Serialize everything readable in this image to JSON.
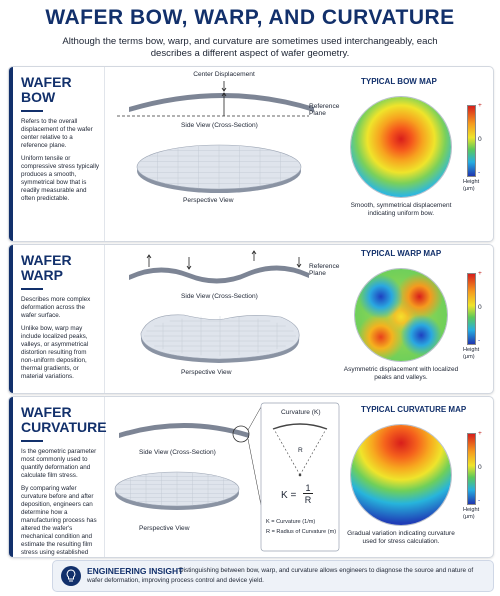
{
  "header": {
    "title": "WAFER BOW, WARP, AND CURVATURE",
    "subtitle": "Although the terms bow, warp, and curvature are sometimes used interchangeably, each describes a different aspect of wafer geometry."
  },
  "sections": [
    {
      "heading": [
        "WAFER",
        "BOW"
      ],
      "paragraphs": [
        "Refers to the overall displacement of the wafer center relative to a reference plane.",
        "Uniform tensile or compressive stress typically produces a smooth, symmetrical bow that is readily measurable and often predictable."
      ],
      "annotations": [
        "Center Displacement",
        "Reference Plane"
      ],
      "side_view_label": "Side View (Cross-Section)",
      "perspective_label": "Perspective View",
      "map_title": "TYPICAL BOW MAP",
      "map_caption": "Smooth, symmetrical displacement indicating uniform bow.",
      "colorbar": {
        "max": "+",
        "mid": "0",
        "min": "-",
        "label": "Height (μm)"
      }
    },
    {
      "heading": [
        "WAFER",
        "WARP"
      ],
      "paragraphs": [
        "Describes more complex deformation across the wafer surface.",
        "Unlike bow, warp may include localized peaks, valleys, or asymmetrical distortion resulting from non-uniform deposition, thermal gradients, or material variations."
      ],
      "annotations": [
        "Reference Plane"
      ],
      "side_view_label": "Side View (Cross-Section)",
      "perspective_label": "Perspective View",
      "map_title": "TYPICAL WARP MAP",
      "map_caption": "Asymmetric displacement with localized peaks and valleys.",
      "colorbar": {
        "max": "+",
        "mid": "0",
        "min": "-",
        "label": "Height (μm)"
      }
    },
    {
      "heading": [
        "WAFER",
        "CURVATURE"
      ],
      "paragraphs": [
        "Is the geometric parameter most commonly used to quantify deformation and calculate film stress.",
        "By comparing wafer curvature before and after deposition, engineers can determine how a manufacturing process has altered the wafer's mechanical condition and estimate the resulting film stress using established analytical models."
      ],
      "annotations": [],
      "inset": {
        "title": "Curvature (K)",
        "radius_label": "R",
        "formula": {
          "lhs": "K =",
          "numerator": "1",
          "denominator": "R"
        },
        "legend": [
          "K = Curvature (1/m)",
          "R = Radius of Curvature (m)"
        ]
      },
      "side_view_label": "Side View (Cross-Section)",
      "perspective_label": "Perspective View",
      "map_title": "TYPICAL CURVATURE MAP",
      "map_caption": "Gradual variation indicating curvature used for stress calculation.",
      "colorbar": {
        "max": "+",
        "mid": "0",
        "min": "-",
        "label": "Height (μm)"
      }
    }
  ],
  "insight": {
    "title": "ENGINEERING INSIGHT",
    "text": "Distinguishing between bow, warp, and curvature allows engineers to diagnose the source and nature of wafer deformation, improving process control and device yield."
  }
}
